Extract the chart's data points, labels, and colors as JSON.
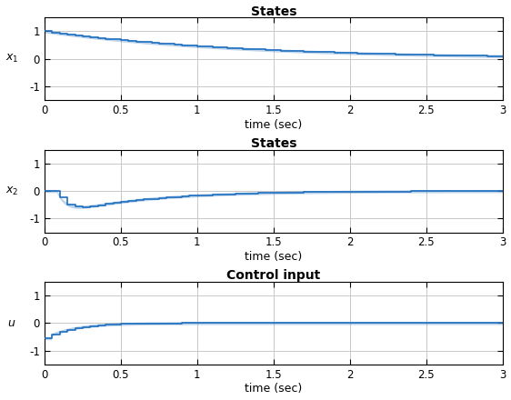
{
  "title1": "States",
  "title2": "States",
  "title3": "Control input",
  "xlabel": "time (sec)",
  "ylabel1": "$x_1$",
  "ylabel2": "$x_2$",
  "ylabel3": "$u$",
  "xlim": [
    0,
    3
  ],
  "ylim1": [
    -1.5,
    1.5
  ],
  "ylim2": [
    -1.5,
    1.5
  ],
  "ylim3": [
    -1.5,
    1.5
  ],
  "yticks1": [
    -1,
    0,
    1
  ],
  "yticks2": [
    -1,
    0,
    1
  ],
  "yticks3": [
    -1,
    0,
    1
  ],
  "xticks": [
    0,
    0.5,
    1,
    1.5,
    2,
    2.5,
    3
  ],
  "line_color": "#1f6fbf",
  "line_width": 1.2,
  "grid_color": "#c8c8c8",
  "bg_color": "#ffffff",
  "title_fontsize": 10,
  "label_fontsize": 9,
  "tick_fontsize": 8.5,
  "dt": 0.05,
  "T": 3.0
}
